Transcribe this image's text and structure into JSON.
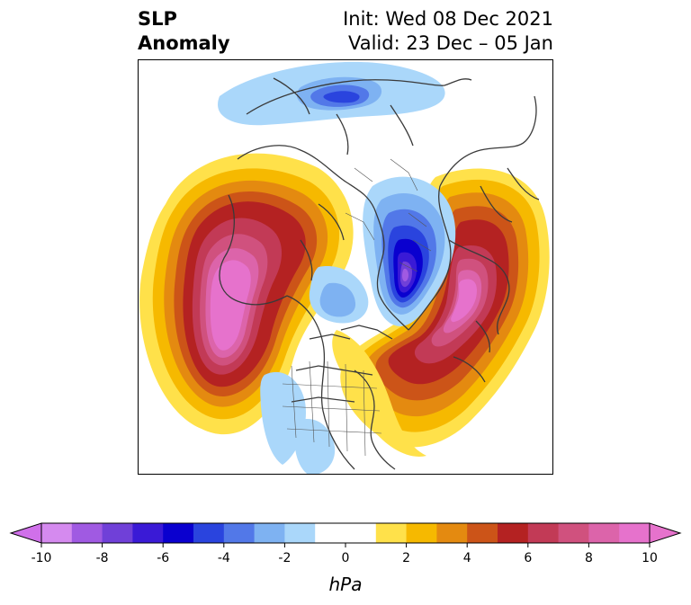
{
  "title": {
    "line1_left": "SLP",
    "line2_left": "Anomaly",
    "line1_right": "Init: Wed 08 Dec 2021",
    "line2_right": "Valid: 23 Dec – 05 Jan"
  },
  "colorbar": {
    "unit": "hPa",
    "tick_labels": [
      "-10",
      "-8",
      "-6",
      "-4",
      "-2",
      "0",
      "2",
      "4",
      "6",
      "8",
      "10"
    ],
    "levels": [
      -10,
      -9,
      -8,
      -7,
      -6,
      -5,
      -4,
      -3,
      -2,
      -1,
      1,
      2,
      3,
      4,
      5,
      6,
      7,
      8,
      9,
      10
    ],
    "colors": [
      "#d58aef",
      "#a05ae2",
      "#7040d8",
      "#3a1ad6",
      "#0a00cf",
      "#2a44de",
      "#5278e8",
      "#7eb2f2",
      "#aad7fa",
      "#ffffff",
      "#ffe14a",
      "#f6b900",
      "#e48a10",
      "#cc5418",
      "#b42222",
      "#c23a56",
      "#d0517e",
      "#dc64aa",
      "#e672cc"
    ],
    "extend_low_color": "#d070ea",
    "extend_high_color": "#e672cc"
  },
  "map": {
    "projection": "north polar stereographic",
    "field": "sea level pressure anomaly",
    "features": [
      "positive anomaly over north Pacific / Alaska",
      "negative anomaly over Greenland",
      "positive anomaly over north Atlantic",
      "negative anomaly over Siberia"
    ]
  }
}
